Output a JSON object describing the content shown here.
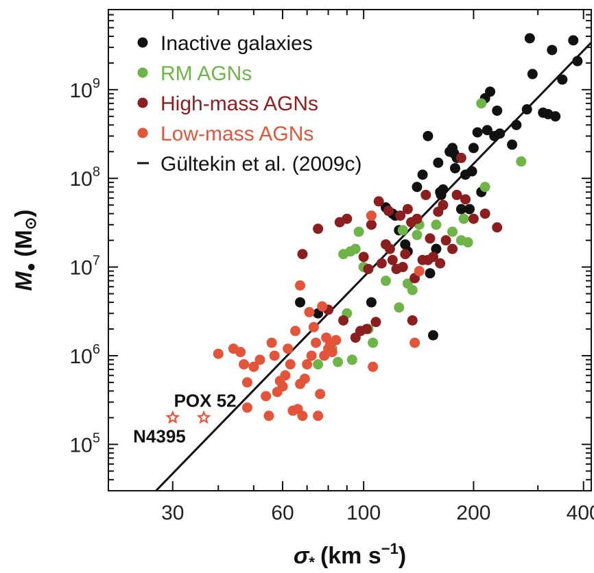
{
  "chart_data": {
    "type": "scatter",
    "x_scale": "log",
    "y_scale": "log",
    "xlim": [
      20,
      420
    ],
    "ylim": [
      30000,
      8000000000
    ],
    "grid": false,
    "legend_position": "top-left",
    "xlabel": "σ",
    "xlabel_sub": "*",
    "xlabel_units": "(km s",
    "xlabel_units_sup": "−1",
    "xlabel_units_end": ")",
    "ylabel": "M",
    "ylabel_sub": "●",
    "ylabel_units": "(M",
    "ylabel_units_sub": "⊙",
    "ylabel_units_end": ")",
    "x_ticks": [
      {
        "value": 30,
        "label": "30"
      },
      {
        "value": 60,
        "label": "60"
      },
      {
        "value": 100,
        "label": "100"
      },
      {
        "value": 200,
        "label": "200"
      },
      {
        "value": 400,
        "label": "400"
      }
    ],
    "y_ticks": [
      {
        "value": 100000,
        "base": "10",
        "exp": "5"
      },
      {
        "value": 1000000,
        "base": "10",
        "exp": "6"
      },
      {
        "value": 10000000,
        "base": "10",
        "exp": "7"
      },
      {
        "value": 100000000,
        "base": "10",
        "exp": "8"
      },
      {
        "value": 1000000000,
        "base": "10",
        "exp": "9"
      }
    ],
    "series": [
      {
        "name": "Inactive galaxies",
        "color": "#111111",
        "points": [
          [
            67,
            4000000.0
          ],
          [
            75,
            3000000.0
          ],
          [
            105,
            4000000.0
          ],
          [
            115,
            47000000.0
          ],
          [
            120,
            40000000.0
          ],
          [
            122,
            38000000.0
          ],
          [
            125,
            26000000.0
          ],
          [
            130,
            18000000.0
          ],
          [
            132,
            15000000.0
          ],
          [
            140,
            80000000.0
          ],
          [
            145,
            110000000.0
          ],
          [
            150,
            300000000.0
          ],
          [
            152,
            8500000.0
          ],
          [
            155,
            1700000.0
          ],
          [
            158,
            16000000.0
          ],
          [
            160,
            150000000.0
          ],
          [
            162,
            70000000.0
          ],
          [
            163,
            65000000.0
          ],
          [
            165,
            75000000.0
          ],
          [
            172,
            200000000.0
          ],
          [
            175,
            220000000.0
          ],
          [
            177,
            190000000.0
          ],
          [
            178,
            130000000.0
          ],
          [
            180,
            170000000.0
          ],
          [
            185,
            45000000.0
          ],
          [
            190,
            110000000.0
          ],
          [
            195,
            45000000.0
          ],
          [
            198,
            120000000.0
          ],
          [
            200,
            220000000.0
          ],
          [
            205,
            330000000.0
          ],
          [
            210,
            70000000.0
          ],
          [
            215,
            800000000.0
          ],
          [
            218,
            350000000.0
          ],
          [
            222,
            950000000.0
          ],
          [
            228,
            300000000.0
          ],
          [
            232,
            580000000.0
          ],
          [
            236,
            320000000.0
          ],
          [
            255,
            240000000.0
          ],
          [
            262,
            400000000.0
          ],
          [
            280,
            600000000.0
          ],
          [
            285,
            3800000000.0
          ],
          [
            290,
            1500000000.0
          ],
          [
            310,
            550000000.0
          ],
          [
            320,
            530000000.0
          ],
          [
            328,
            2800000000.0
          ],
          [
            335,
            500000000.0
          ],
          [
            350,
            1300000000.0
          ],
          [
            375,
            3600000000.0
          ],
          [
            385,
            2100000000.0
          ]
        ]
      },
      {
        "name": "RM AGNs",
        "color": "#6fb448",
        "points": [
          [
            75,
            800000.0
          ],
          [
            82,
            1200000.0
          ],
          [
            85,
            850000.0
          ],
          [
            88,
            14000000.0
          ],
          [
            90,
            3000000.0
          ],
          [
            92,
            15000000.0
          ],
          [
            93,
            900000.0
          ],
          [
            95,
            16000000.0
          ],
          [
            97,
            25000000.0
          ],
          [
            100,
            10000000.0
          ],
          [
            103,
            2000000.0
          ],
          [
            106,
            1400000.0
          ],
          [
            115,
            7000000.0
          ],
          [
            125,
            3500000.0
          ],
          [
            128,
            26000000.0
          ],
          [
            132,
            6500000.0
          ],
          [
            136,
            5500000.0
          ],
          [
            140,
            23000000.0
          ],
          [
            142,
            30000000.0
          ],
          [
            158,
            30000000.0
          ],
          [
            175,
            25000000.0
          ],
          [
            185,
            20000000.0
          ],
          [
            188,
            35000000.0
          ],
          [
            193,
            19000000.0
          ],
          [
            210,
            700000000.0
          ],
          [
            215,
            80000000.0
          ],
          [
            270,
            155000000.0
          ]
        ]
      },
      {
        "name": "High-mass AGNs",
        "color": "#8b1e1e",
        "points": [
          [
            68,
            14000000.0
          ],
          [
            75,
            27000000.0
          ],
          [
            80,
            3300000.0
          ],
          [
            86,
            32000000.0
          ],
          [
            88,
            2500000.0
          ],
          [
            90,
            35000000.0
          ],
          [
            95,
            1600000.0
          ],
          [
            98,
            1900000.0
          ],
          [
            100,
            13000000.0
          ],
          [
            102,
            2000000.0
          ],
          [
            103,
            9500000.0
          ],
          [
            105,
            30000000.0
          ],
          [
            108,
            2400000.0
          ],
          [
            110,
            55000000.0
          ],
          [
            112,
            11000000.0
          ],
          [
            115,
            18000000.0
          ],
          [
            117,
            43000000.0
          ],
          [
            118,
            16000000.0
          ],
          [
            120,
            12000000.0
          ],
          [
            123,
            9500000.0
          ],
          [
            126,
            38000000.0
          ],
          [
            128,
            10000000.0
          ],
          [
            130,
            14000000.0
          ],
          [
            132,
            45000000.0
          ],
          [
            135,
            32000000.0
          ],
          [
            136,
            2500000.0
          ],
          [
            138,
            7500000.0
          ],
          [
            140,
            35000000.0
          ],
          [
            145,
            12000000.0
          ],
          [
            148,
            65000000.0
          ],
          [
            150,
            12000000.0
          ],
          [
            152,
            21000000.0
          ],
          [
            155,
            13000000.0
          ],
          [
            160,
            42000000.0
          ],
          [
            162,
            11000000.0
          ],
          [
            165,
            50000000.0
          ],
          [
            168,
            20000000.0
          ],
          [
            175,
            16000000.0
          ],
          [
            180,
            65000000.0
          ],
          [
            185,
            170000000.0
          ],
          [
            190,
            58000000.0
          ],
          [
            200,
            35000000.0
          ],
          [
            215,
            40000000.0
          ],
          [
            232,
            28000000.0
          ]
        ]
      },
      {
        "name": "Low-mass AGNs",
        "color": "#e2553a",
        "points": [
          [
            40,
            1050000.0
          ],
          [
            44,
            1200000.0
          ],
          [
            46,
            1100000.0
          ],
          [
            47,
            800000.0
          ],
          [
            48,
            500000.0
          ],
          [
            48,
            260000.0
          ],
          [
            50,
            750000.0
          ],
          [
            52,
            900000.0
          ],
          [
            54,
            350000.0
          ],
          [
            55,
            210000.0
          ],
          [
            56,
            1400000.0
          ],
          [
            57,
            1000000.0
          ],
          [
            58,
            390000.0
          ],
          [
            59,
            520000.0
          ],
          [
            60,
            450000.0
          ],
          [
            61,
            600000.0
          ],
          [
            62,
            1200000.0
          ],
          [
            63,
            800000.0
          ],
          [
            64,
            240000.0
          ],
          [
            65,
            1900000.0
          ],
          [
            66,
            250000.0
          ],
          [
            67,
            6200000.0
          ],
          [
            67,
            480000.0
          ],
          [
            68,
            210000.0
          ],
          [
            69,
            550000.0
          ],
          [
            70,
            800000.0
          ],
          [
            71,
            3100000.0
          ],
          [
            72,
            1000000.0
          ],
          [
            73,
            2100000.0
          ],
          [
            74,
            1400000.0
          ],
          [
            75,
            210000.0
          ],
          [
            76,
            370000.0
          ],
          [
            77,
            3600000.0
          ],
          [
            78,
            1000000.0
          ],
          [
            79,
            1600000.0
          ],
          [
            80,
            1200000.0
          ],
          [
            81,
            1350000.0
          ],
          [
            82,
            1100000.0
          ],
          [
            84,
            1500000.0
          ],
          [
            105,
            38000000.0
          ],
          [
            106,
            750000.0
          ],
          [
            138,
            1400000.0
          ],
          [
            142,
            9000000.0
          ]
        ]
      }
    ],
    "fit_line": {
      "name": "Gültekin et al. (2009c)",
      "color": "#111111",
      "from": [
        27.0,
        30000
      ],
      "to": [
        420,
        3400000000.0
      ]
    },
    "annotations": [
      {
        "text": "POX 52",
        "x": 36.5,
        "y": 200000.0,
        "marker": "star",
        "color": "#e2553a"
      },
      {
        "text": "N4395",
        "x": 30.0,
        "y": 200000.0,
        "marker": "star",
        "color": "#e2553a"
      }
    ]
  }
}
